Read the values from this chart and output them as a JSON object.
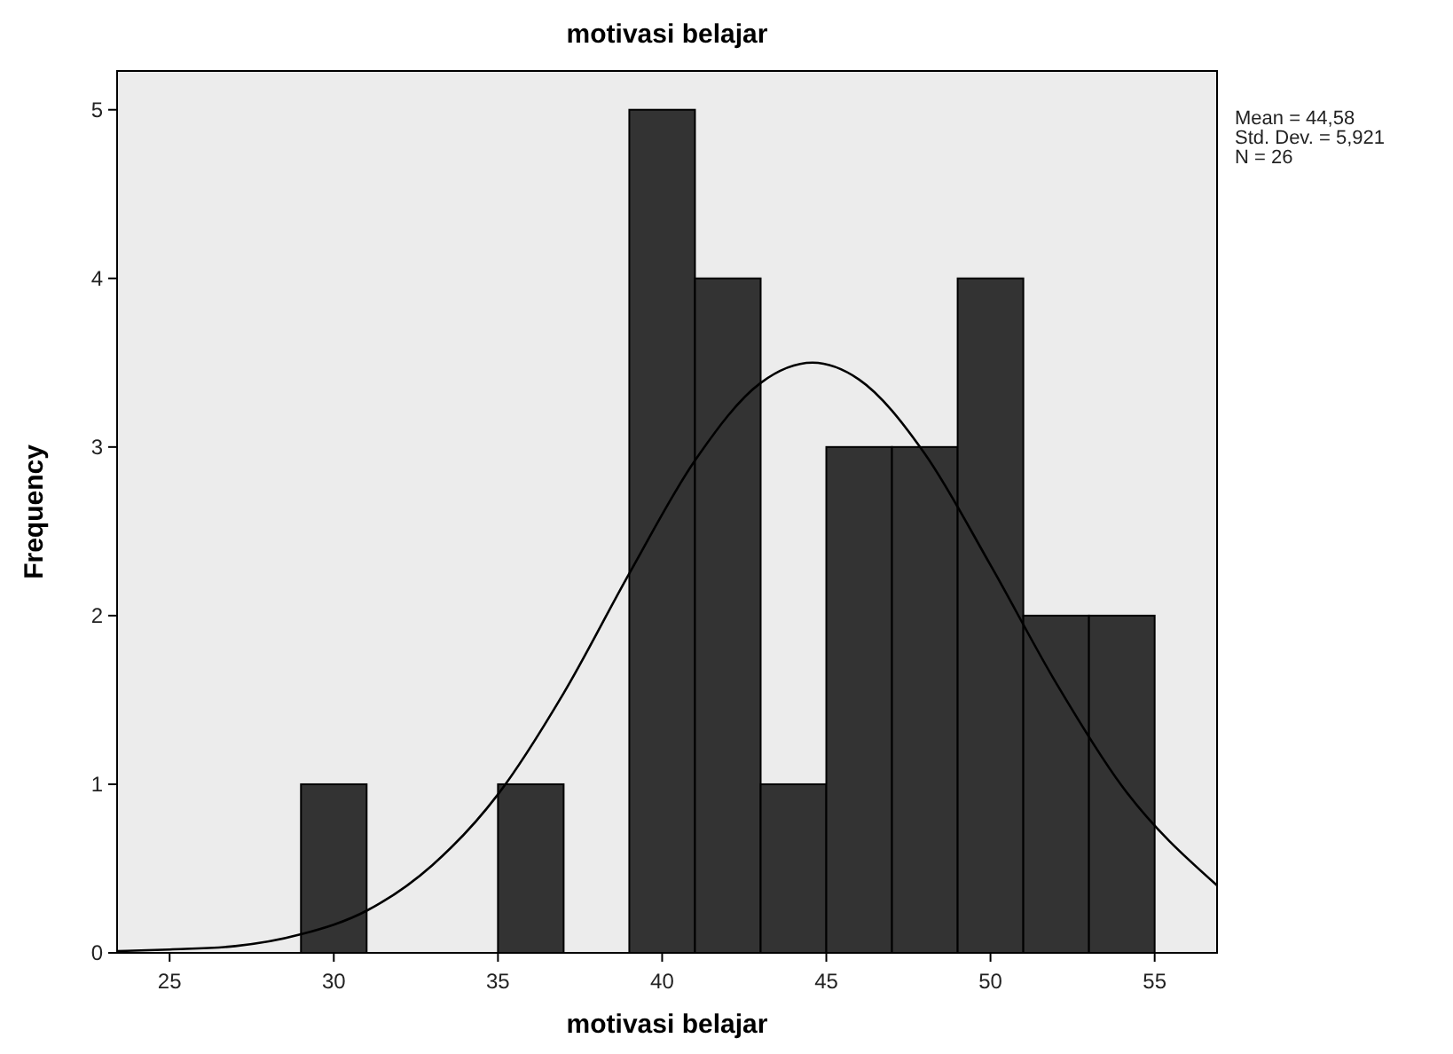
{
  "chart_data": {
    "type": "histogram",
    "title": "motivasi belajar",
    "xlabel": "motivasi belajar",
    "ylabel": "Frequency",
    "bins": [
      29,
      31,
      33,
      35,
      37,
      39,
      41,
      43,
      45,
      47,
      49,
      51,
      53,
      55
    ],
    "values": [
      1,
      0,
      0,
      1,
      0,
      5,
      4,
      1,
      3,
      3,
      4,
      2,
      2
    ],
    "color": "#333333",
    "series": [
      {
        "type": "line",
        "color": "#000000",
        "x": [
          23.4,
          25,
          27,
          29,
          31,
          33,
          35,
          37,
          39,
          41,
          43,
          44.58,
          46,
          48,
          50,
          52,
          54,
          56.9
        ],
        "values": [
          0.01,
          0.02,
          0.04,
          0.11,
          0.25,
          0.52,
          0.94,
          1.54,
          2.25,
          2.92,
          3.38,
          3.5,
          3.4,
          2.96,
          2.3,
          1.6,
          0.99,
          0.4
        ]
      }
    ],
    "xlim": [
      23.4,
      56.9
    ],
    "xticks": [
      25,
      30,
      35,
      40,
      45,
      50,
      55
    ],
    "ylim": [
      0,
      5.23
    ],
    "yticks": [
      0,
      1,
      2,
      3,
      4,
      5
    ],
    "grid": false,
    "annotations": [
      "Mean = 44,58",
      "Std. Dev. = 5,921",
      "N = 26"
    ]
  }
}
